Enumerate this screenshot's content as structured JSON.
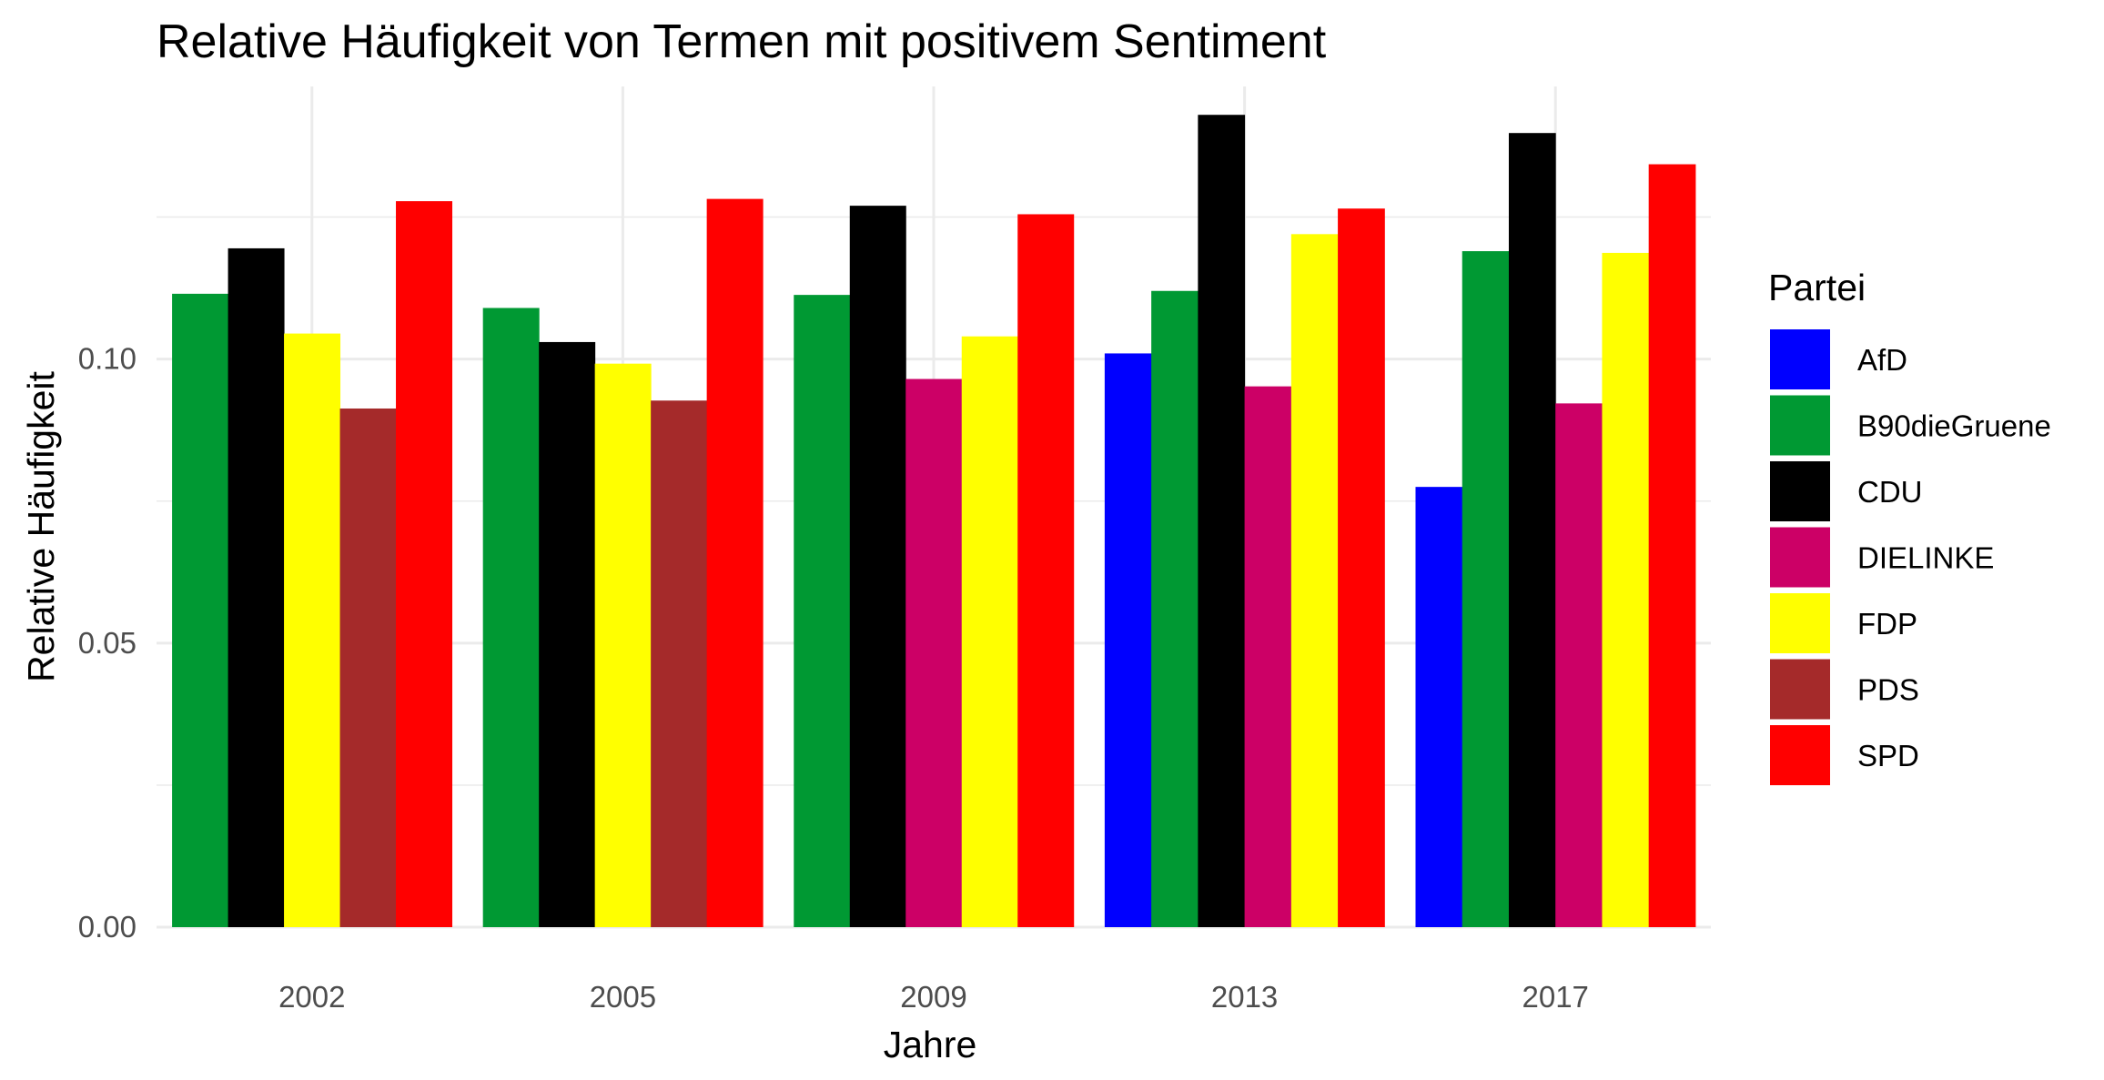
{
  "chart_data": {
    "type": "bar",
    "title": "Relative Häufigkeit von Termen mit positivem Sentiment",
    "xlabel": "Jahre",
    "ylabel": "Relative Häufigkeit",
    "ylim": [
      0,
      0.148
    ],
    "yticks": [
      0.0,
      0.05,
      0.1
    ],
    "ytick_labels": [
      "0.00",
      "0.05",
      "0.10"
    ],
    "grid": true,
    "legend_title": "Partei",
    "legend_position": "right",
    "categories": [
      "2002",
      "2005",
      "2009",
      "2013",
      "2017"
    ],
    "series": [
      {
        "name": "AfD",
        "color": "#0000FF",
        "values": [
          null,
          null,
          null,
          0.101,
          0.0775
        ]
      },
      {
        "name": "B90dieGruene",
        "color": "#009933",
        "values": [
          0.1115,
          0.109,
          0.1113,
          0.112,
          0.119
        ]
      },
      {
        "name": "CDU",
        "color": "#000000",
        "values": [
          0.1195,
          0.103,
          0.127,
          0.143,
          0.1398
        ]
      },
      {
        "name": "DIELINKE",
        "color": "#CC0066",
        "values": [
          null,
          null,
          0.0965,
          0.0952,
          0.0922
        ]
      },
      {
        "name": "FDP",
        "color": "#FFFF00",
        "values": [
          0.1045,
          0.0992,
          0.104,
          0.122,
          0.1187
        ]
      },
      {
        "name": "PDS",
        "color": "#A52A2A",
        "values": [
          0.0913,
          0.0927,
          null,
          null,
          null
        ]
      },
      {
        "name": "SPD",
        "color": "#FF0000",
        "values": [
          0.1278,
          0.1282,
          0.1255,
          0.1265,
          0.1343
        ]
      }
    ]
  }
}
